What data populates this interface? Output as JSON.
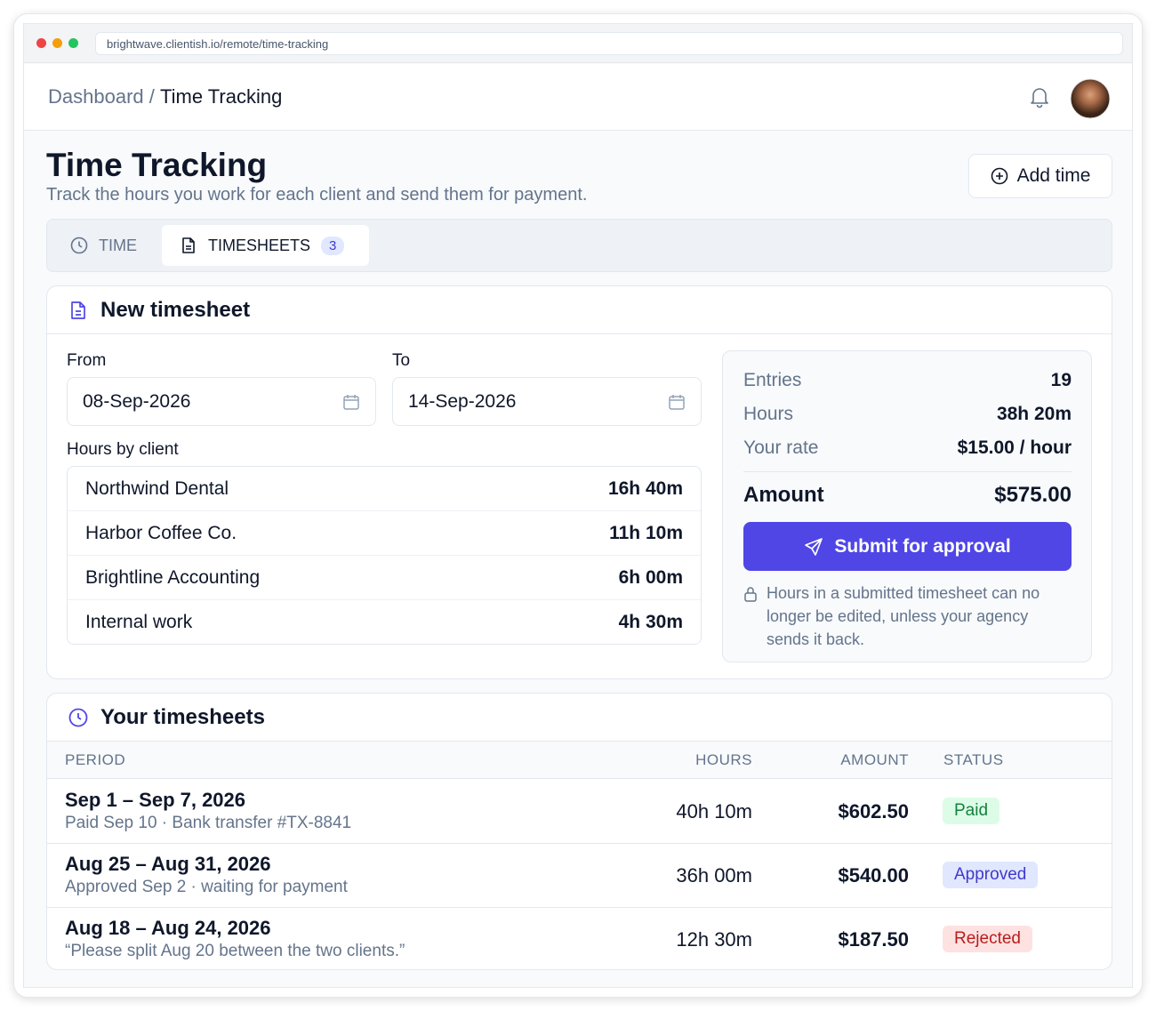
{
  "browser": {
    "url": "brightwave.clientish.io/remote/time-tracking"
  },
  "header": {
    "breadcrumb_root": "Dashboard",
    "breadcrumb_separator": "/",
    "breadcrumb_current": "Time Tracking"
  },
  "page": {
    "title": "Time Tracking",
    "subtitle": "Track the hours you work for each client and send them for payment.",
    "add_button": "Add time"
  },
  "tabs": [
    {
      "label": "TIME"
    },
    {
      "label": "TIMESHEETS",
      "count": 3
    }
  ],
  "new_timesheet": {
    "title": "New timesheet",
    "from_label": "From",
    "from_value": "08-Sep-2026",
    "to_label": "To",
    "to_value": "14-Sep-2026",
    "hours_by_client_label": "Hours by client",
    "clients": [
      {
        "name": "Northwind Dental",
        "hours": "16h 40m"
      },
      {
        "name": "Harbor Coffee Co.",
        "hours": "11h 10m"
      },
      {
        "name": "Brightline Accounting",
        "hours": "6h 00m"
      },
      {
        "name": "Internal work",
        "hours": "4h 30m"
      }
    ],
    "summary": [
      {
        "label": "Entries",
        "value": "19"
      },
      {
        "label": "Hours",
        "value": "38h 20m"
      },
      {
        "label": "Your rate",
        "value": "$15.00 / hour"
      }
    ],
    "amount_label": "Amount",
    "amount_value": "$575.00",
    "submit_button": "Submit for approval",
    "note": "Hours in a submitted timesheet can no longer be edited, unless your agency sends it back."
  },
  "your_timesheets": {
    "title": "Your timesheets",
    "columns": [
      "PERIOD",
      "HOURS",
      "AMOUNT",
      "STATUS"
    ],
    "rows": [
      {
        "period": "Sep 1 – Sep 7, 2026",
        "detail": "Paid Sep 10 · Bank transfer #TX-8841",
        "hours": "40h 10m",
        "amount": "$602.50",
        "status": "Paid"
      },
      {
        "period": "Aug 25 – Aug 31, 2026",
        "detail": "Approved Sep 2 · waiting for payment",
        "hours": "36h 00m",
        "amount": "$540.00",
        "status": "Approved"
      },
      {
        "period": "Aug 18 – Aug 24, 2026",
        "detail": "“Please split Aug 20 between the two clients.”",
        "hours": "12h 30m",
        "amount": "$187.50",
        "status": "Rejected"
      }
    ]
  }
}
